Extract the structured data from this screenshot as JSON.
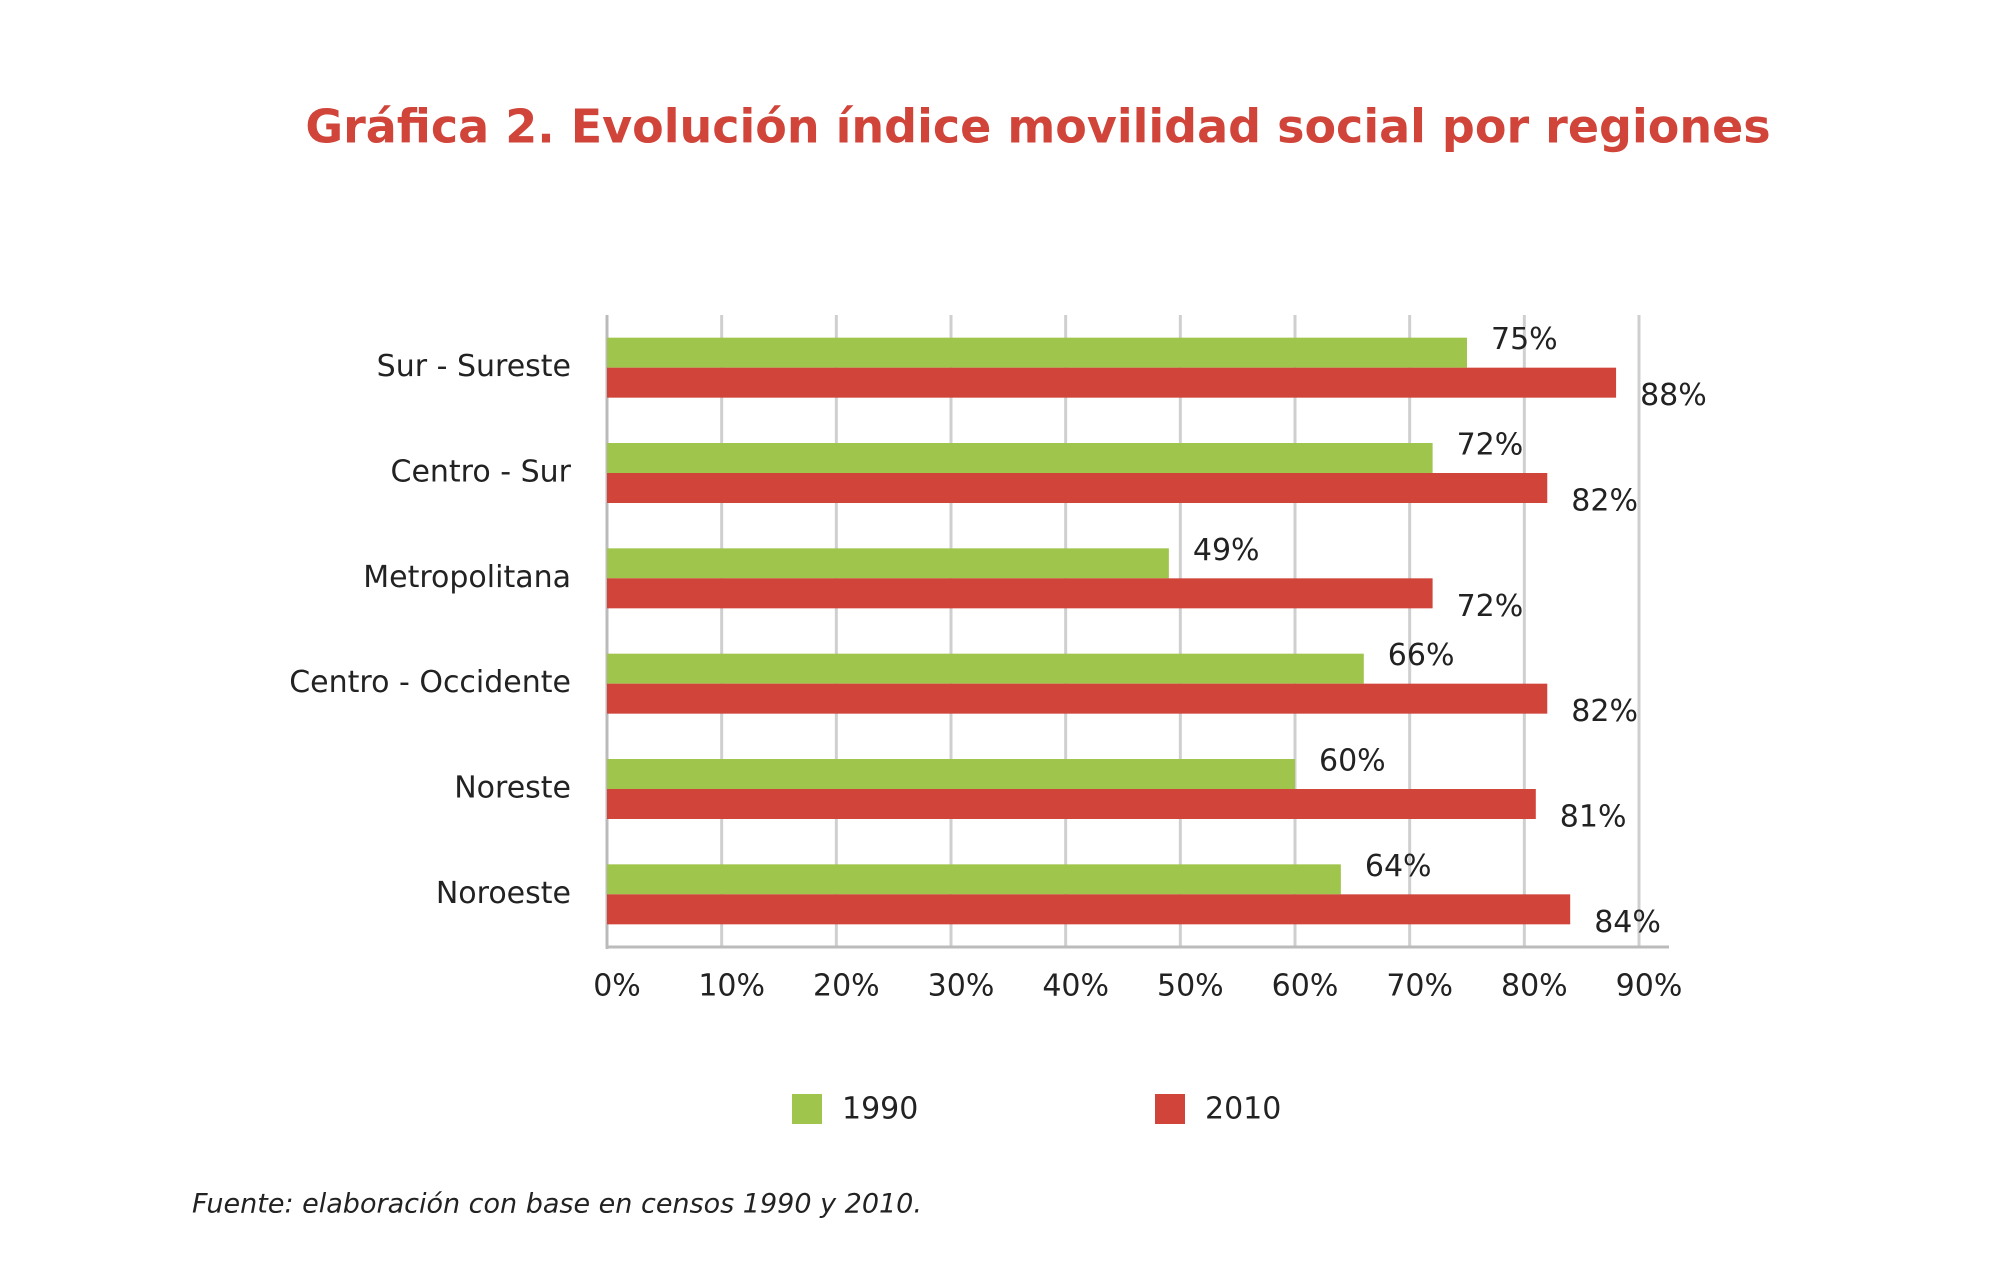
{
  "chart_data": {
    "type": "bar",
    "orientation": "horizontal",
    "title": "Gráfica 2. Evolución índice movilidad social por regiones",
    "categories": [
      "Sur - Sureste",
      "Centro - Sur",
      "Metropolitana",
      "Centro - Occidente",
      "Noreste",
      "Noroeste"
    ],
    "series": [
      {
        "name": "1990",
        "color": "#a0c54c",
        "values": [
          75,
          72,
          49,
          66,
          60,
          64
        ],
        "value_labels": [
          "75%",
          "72%",
          "49%",
          "66%",
          "60%",
          "64%"
        ]
      },
      {
        "name": "2010",
        "color": "#d0443a",
        "values": [
          88,
          82,
          72,
          82,
          81,
          84
        ],
        "value_labels": [
          "88%",
          "82%",
          "72%",
          "82%",
          "81%",
          "84%"
        ]
      }
    ],
    "xlim": [
      0,
      90
    ],
    "xticks": [
      {
        "value": 0,
        "label": "0%"
      },
      {
        "value": 10,
        "label": "10%"
      },
      {
        "value": 20,
        "label": "20%"
      },
      {
        "value": 30,
        "label": "30%"
      },
      {
        "value": 40,
        "label": "40%"
      },
      {
        "value": 50,
        "label": "50%"
      },
      {
        "value": 60,
        "label": "60%"
      },
      {
        "value": 70,
        "label": "70%"
      },
      {
        "value": 80,
        "label": "80%"
      },
      {
        "value": 90,
        "label": "90%"
      }
    ],
    "grid": true,
    "legend": "bottom",
    "source": "Fuente: elaboración con base en censos 1990 y 2010."
  }
}
